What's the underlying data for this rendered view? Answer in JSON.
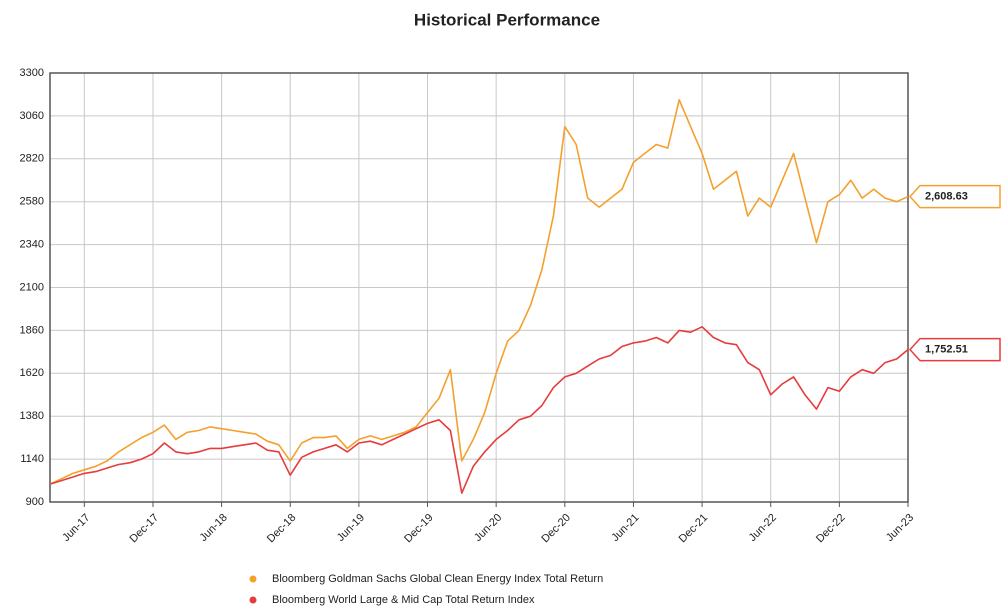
{
  "chart_data": {
    "type": "line",
    "title": "Historical Performance",
    "categories": [
      null,
      null,
      null,
      "Jun-17",
      null,
      null,
      null,
      null,
      null,
      "Dec-17",
      null,
      null,
      null,
      null,
      null,
      "Jun-18",
      null,
      null,
      null,
      null,
      null,
      "Dec-18",
      null,
      null,
      null,
      null,
      null,
      "Jun-19",
      null,
      null,
      null,
      null,
      null,
      "Dec-19",
      null,
      null,
      null,
      null,
      null,
      "Jun-20",
      null,
      null,
      null,
      null,
      null,
      "Dec-20",
      null,
      null,
      null,
      null,
      null,
      "Jun-21",
      null,
      null,
      null,
      null,
      null,
      "Dec-21",
      null,
      null,
      null,
      null,
      null,
      "Jun-22",
      null,
      null,
      null,
      null,
      null,
      "Dec-22",
      null,
      null,
      null,
      null,
      null,
      "Jun-23"
    ],
    "series": [
      {
        "name": "Bloomberg Goldman Sachs Global Clean Energy Index Total Return",
        "color": "#f5a02c",
        "values": [
          1000,
          1030,
          1060,
          1080,
          1100,
          1130,
          1180,
          1220,
          1260,
          1290,
          1330,
          1250,
          1290,
          1300,
          1320,
          1310,
          1300,
          1290,
          1280,
          1240,
          1220,
          1130,
          1230,
          1260,
          1260,
          1270,
          1200,
          1250,
          1270,
          1250,
          1270,
          1290,
          1320,
          1400,
          1480,
          1640,
          1130,
          1250,
          1400,
          1620,
          1800,
          1860,
          2000,
          2200,
          2500,
          3000,
          2900,
          2600,
          2550,
          2600,
          2650,
          2800,
          2850,
          2900,
          2880,
          3150,
          3000,
          2850,
          2650,
          2700,
          2750,
          2500,
          2600,
          2550,
          2700,
          2850,
          2600,
          2350,
          2580,
          2620,
          2700,
          2600,
          2650,
          2600,
          2580,
          2608.63
        ],
        "last_value_label": "2,608.63"
      },
      {
        "name": "Bloomberg World Large & Mid Cap Total Return Index",
        "color": "#e63c3c",
        "values": [
          1000,
          1020,
          1040,
          1060,
          1070,
          1090,
          1110,
          1120,
          1140,
          1170,
          1230,
          1180,
          1170,
          1180,
          1200,
          1200,
          1210,
          1220,
          1230,
          1190,
          1180,
          1050,
          1150,
          1180,
          1200,
          1220,
          1180,
          1230,
          1240,
          1220,
          1250,
          1280,
          1310,
          1340,
          1360,
          1300,
          950,
          1100,
          1180,
          1250,
          1300,
          1360,
          1380,
          1440,
          1540,
          1600,
          1620,
          1660,
          1700,
          1720,
          1770,
          1790,
          1800,
          1820,
          1790,
          1860,
          1850,
          1880,
          1820,
          1790,
          1780,
          1680,
          1640,
          1500,
          1560,
          1600,
          1500,
          1420,
          1540,
          1520,
          1600,
          1640,
          1620,
          1680,
          1700,
          1752.51
        ],
        "last_value_label": "1,752.51"
      }
    ],
    "ylim": [
      900,
      3300
    ],
    "yticks": [
      900,
      1140,
      1380,
      1620,
      1860,
      2100,
      2340,
      2580,
      2820,
      3060,
      3300
    ],
    "grid": true
  }
}
